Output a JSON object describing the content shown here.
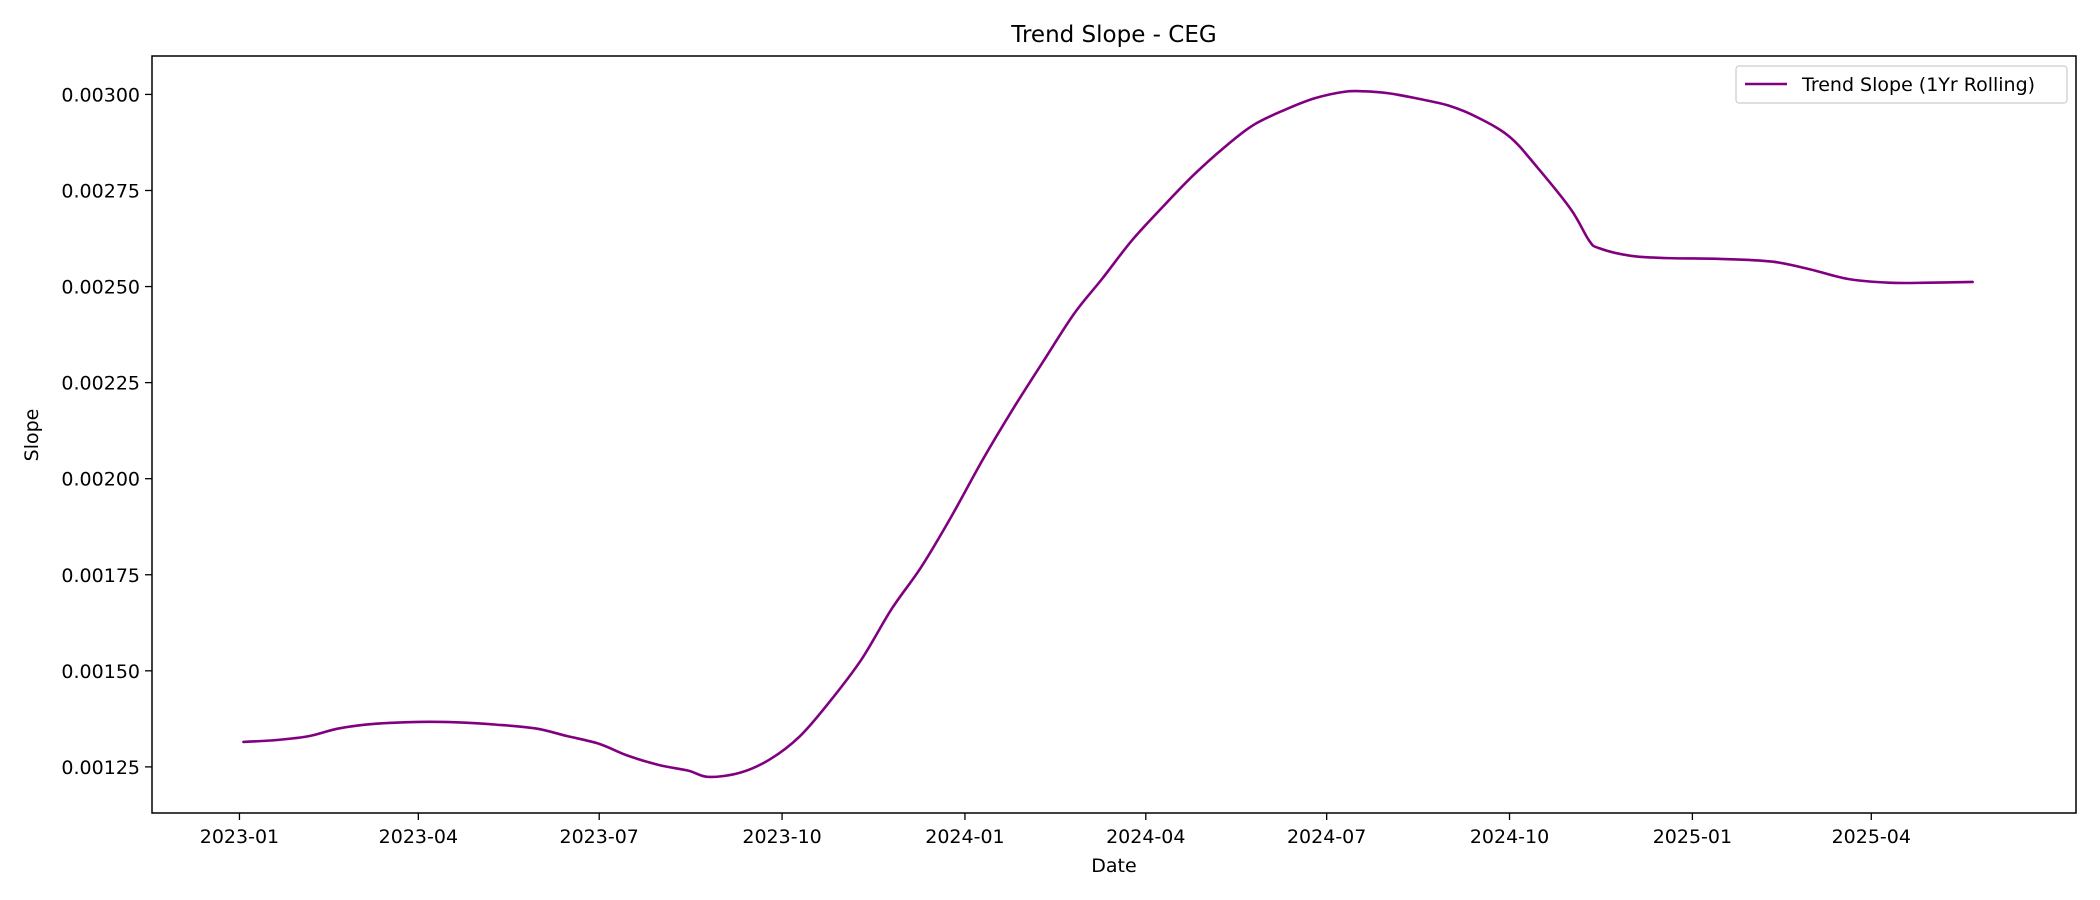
{
  "chart_data": {
    "type": "line",
    "title": "Trend Slope - CEG",
    "xlabel": "Date",
    "ylabel": "Slope",
    "x_tick_labels": [
      "2023-01",
      "2023-04",
      "2023-07",
      "2023-10",
      "2024-01",
      "2024-04",
      "2024-07",
      "2024-10",
      "2025-01",
      "2025-04"
    ],
    "y_tick_labels": [
      "0.00125",
      "0.00150",
      "0.00175",
      "0.00200",
      "0.00225",
      "0.00250",
      "0.00275",
      "0.00300"
    ],
    "y_ticks": [
      0.00125,
      0.0015,
      0.00175,
      0.002,
      0.00225,
      0.0025,
      0.00275,
      0.003
    ],
    "xlim": [
      "2022-11-18",
      "2025-07-13"
    ],
    "ylim": [
      0.00113,
      0.0031
    ],
    "grid": false,
    "legend_position": "top-right",
    "series": [
      {
        "name": "Trend Slope (1Yr Rolling)",
        "color": "#800080",
        "points": [
          [
            "2023-01-03",
            0.001315
          ],
          [
            "2023-01-20",
            0.00132
          ],
          [
            "2023-02-05",
            0.00133
          ],
          [
            "2023-02-20",
            0.00135
          ],
          [
            "2023-03-10",
            0.001362
          ],
          [
            "2023-04-01",
            0.001367
          ],
          [
            "2023-04-20",
            0.001366
          ],
          [
            "2023-05-10",
            0.00136
          ],
          [
            "2023-05-30",
            0.00135
          ],
          [
            "2023-06-15",
            0.00133
          ],
          [
            "2023-07-01",
            0.00131
          ],
          [
            "2023-07-15",
            0.00128
          ],
          [
            "2023-07-31",
            0.001255
          ],
          [
            "2023-08-15",
            0.00124
          ],
          [
            "2023-08-25",
            0.001224
          ],
          [
            "2023-09-10",
            0.001235
          ],
          [
            "2023-09-25",
            0.00127
          ],
          [
            "2023-10-10",
            0.00133
          ],
          [
            "2023-10-25",
            0.00142
          ],
          [
            "2023-11-10",
            0.00153
          ],
          [
            "2023-11-25",
            0.00166
          ],
          [
            "2023-12-10",
            0.00177
          ],
          [
            "2023-12-25",
            0.0019
          ],
          [
            "2024-01-10",
            0.00205
          ],
          [
            "2024-01-25",
            0.00218
          ],
          [
            "2024-02-10",
            0.00231
          ],
          [
            "2024-02-25",
            0.00243
          ],
          [
            "2024-03-10",
            0.00252
          ],
          [
            "2024-03-25",
            0.00262
          ],
          [
            "2024-04-10",
            0.00271
          ],
          [
            "2024-04-25",
            0.00279
          ],
          [
            "2024-05-10",
            0.00286
          ],
          [
            "2024-05-25",
            0.00292
          ],
          [
            "2024-06-10",
            0.00296
          ],
          [
            "2024-06-25",
            0.00299
          ],
          [
            "2024-07-10",
            0.003007
          ],
          [
            "2024-07-20",
            0.003008
          ],
          [
            "2024-08-01",
            0.003003
          ],
          [
            "2024-08-15",
            0.00299
          ],
          [
            "2024-09-01",
            0.00297
          ],
          [
            "2024-09-15",
            0.00294
          ],
          [
            "2024-10-01",
            0.00289
          ],
          [
            "2024-10-15",
            0.00281
          ],
          [
            "2024-11-01",
            0.0027
          ],
          [
            "2024-11-10",
            0.00262
          ],
          [
            "2024-11-15",
            0.0026
          ],
          [
            "2024-12-01",
            0.00258
          ],
          [
            "2024-12-20",
            0.002574
          ],
          [
            "2025-01-15",
            0.002572
          ],
          [
            "2025-02-10",
            0.002565
          ],
          [
            "2025-03-01",
            0.002545
          ],
          [
            "2025-03-20",
            0.00252
          ],
          [
            "2025-04-10",
            0.00251
          ],
          [
            "2025-04-30",
            0.00251
          ],
          [
            "2025-05-22",
            0.002512
          ]
        ]
      }
    ]
  }
}
